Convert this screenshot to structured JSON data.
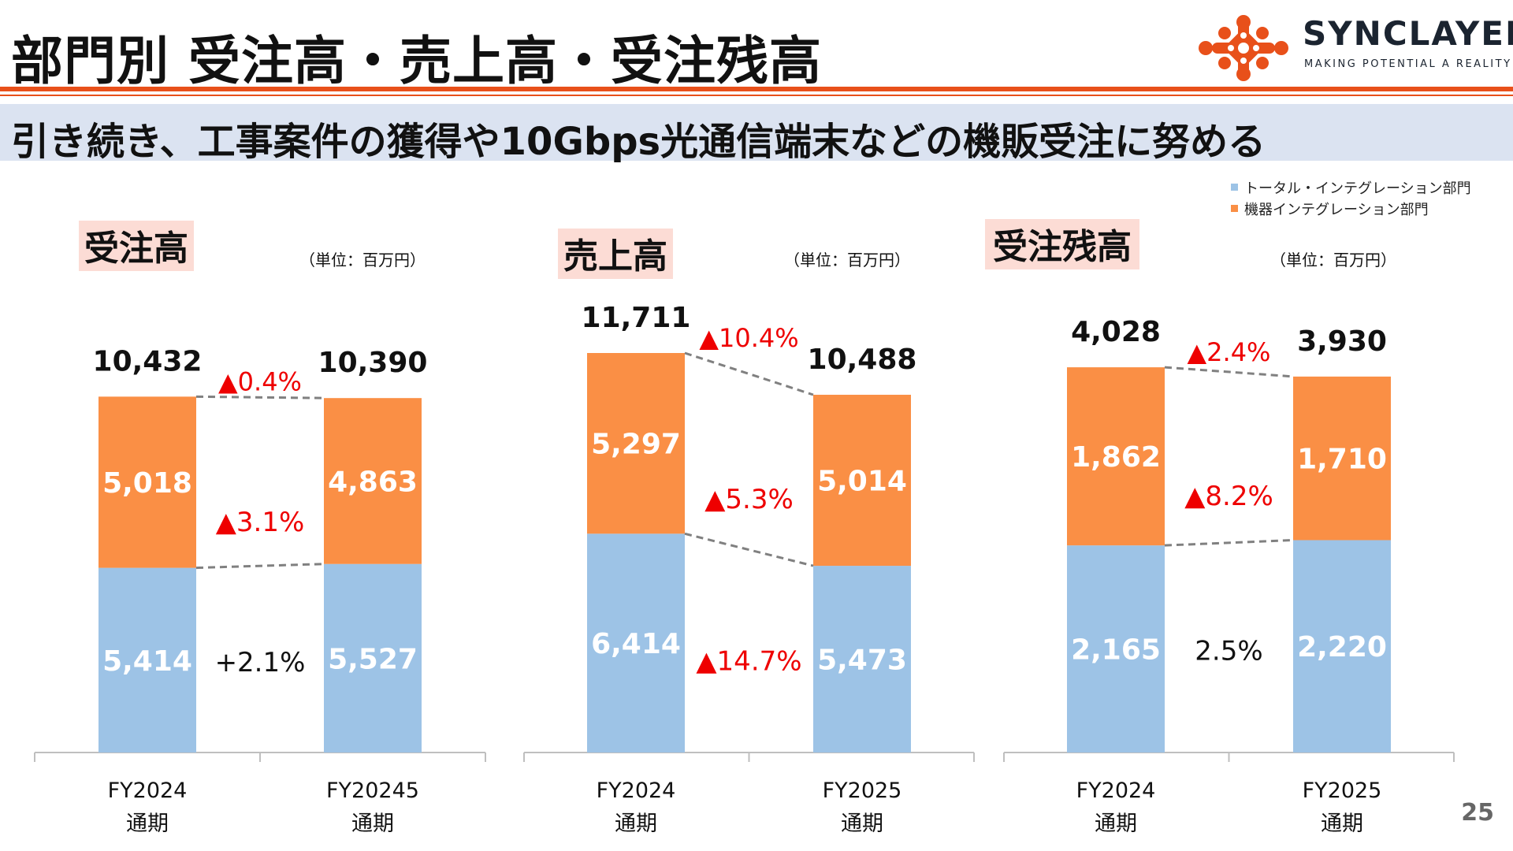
{
  "header": {
    "title": "部門別 受注高・売上高・受注残高",
    "subtitle": "引き続き、工事案件の獲得や10Gbps光通信端末などの機販受注に努める"
  },
  "logo": {
    "name": "SYNCLAYER",
    "tagline": "MAKING POTENTIAL A REALITY"
  },
  "legend": {
    "items": [
      {
        "label": "トータル・インテグレーション部門",
        "color": "#9dc3e6"
      },
      {
        "label": "機器インテグレーション部門",
        "color": "#fa8f45"
      }
    ]
  },
  "page_number": "25",
  "colors": {
    "accent": "#e8501a",
    "subtitle_band": "#dbe3f1",
    "chart_title_band": "#fcdcd5",
    "blue": "#9dc3e6",
    "orange": "#fa8f45",
    "negative": "#ee0000"
  },
  "chart_data": [
    {
      "type": "bar",
      "stacked": true,
      "title": "受注高",
      "unit": "（単位：百万円）",
      "categories": [
        [
          "FY2024",
          "通期"
        ],
        [
          "FY20245",
          "通期"
        ]
      ],
      "series": [
        {
          "name": "トータル・インテグレーション部門",
          "values": [
            5414,
            5527
          ],
          "labels": [
            "5,414",
            "5,527"
          ]
        },
        {
          "name": "機器インテグレーション部門",
          "values": [
            5018,
            4863
          ],
          "labels": [
            "5,018",
            "4,863"
          ]
        }
      ],
      "totals": [
        "10,432",
        "10,390"
      ],
      "changes": {
        "total": "▲0.4%",
        "orange": "▲3.1%",
        "blue": "+2.1%"
      },
      "ylim": [
        0,
        11711
      ]
    },
    {
      "type": "bar",
      "stacked": true,
      "title": "売上高",
      "unit": "（単位：百万円）",
      "categories": [
        [
          "FY2024",
          "通期"
        ],
        [
          "FY2025",
          "通期"
        ]
      ],
      "series": [
        {
          "name": "トータル・インテグレーション部門",
          "values": [
            6414,
            5473
          ],
          "labels": [
            "6,414",
            "5,473"
          ]
        },
        {
          "name": "機器インテグレーション部門",
          "values": [
            5297,
            5014
          ],
          "labels": [
            "5,297",
            "5,014"
          ]
        }
      ],
      "totals": [
        "11,711",
        "10,488"
      ],
      "changes": {
        "total": "▲10.4%",
        "orange": "▲5.3%",
        "blue": "▲14.7%"
      },
      "ylim": [
        0,
        11711
      ]
    },
    {
      "type": "bar",
      "stacked": true,
      "title": "受注残高",
      "unit": "（単位：百万円）",
      "categories": [
        [
          "FY2024",
          "通期"
        ],
        [
          "FY2025",
          "通期"
        ]
      ],
      "series": [
        {
          "name": "トータル・インテグレーション部門",
          "values": [
            2165,
            2220
          ],
          "labels": [
            "2,165",
            "2,220"
          ]
        },
        {
          "name": "機器インテグレーション部門",
          "values": [
            1862,
            1710
          ],
          "labels": [
            "1,862",
            "1,710"
          ]
        }
      ],
      "totals": [
        "4,028",
        "3,930"
      ],
      "changes": {
        "total": "▲2.4%",
        "orange": "▲8.2%",
        "blue": "2.5%"
      },
      "ylim": [
        0,
        4028
      ]
    }
  ]
}
